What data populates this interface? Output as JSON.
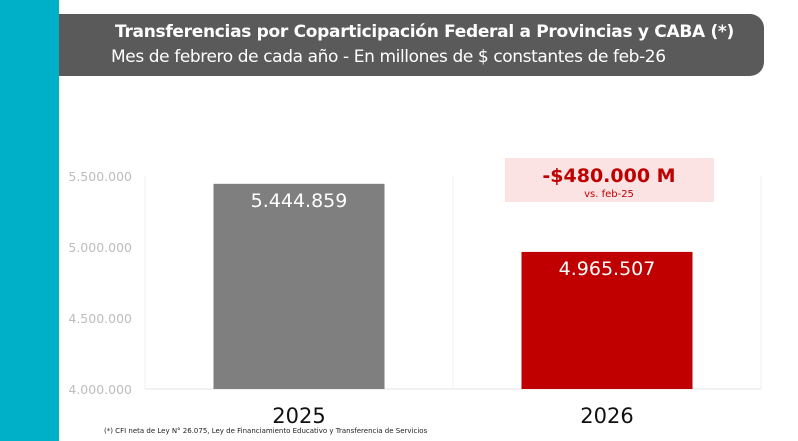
{
  "header": {
    "title": "Transferencias por Coparticipación Federal a Provincias y CABA (*)",
    "subtitle": "Mes de febrero de cada año - En millones de $ constantes de feb-26"
  },
  "colors": {
    "sidebar": "#00b0c8",
    "header": "#5a5a5a",
    "bar_2025": "#7f7f7f",
    "bar_2026": "#c00000",
    "annotation_bg": "#fbe3e3",
    "annotation_text": "#c00000"
  },
  "chart_data": {
    "type": "bar",
    "categories": [
      "2025",
      "2026"
    ],
    "values": [
      5444859,
      4965507
    ],
    "data_labels": [
      "5.444.859",
      "4.965.507"
    ],
    "ylim": [
      4000000,
      5500000
    ],
    "yticks": [
      4000000,
      4500000,
      5000000,
      5500000
    ],
    "ytick_labels": [
      "4.000.000",
      "4.500.000",
      "5.000.000",
      "5.500.000"
    ],
    "grid": false,
    "annotation": {
      "value": "-$480.000 M",
      "note": "vs. feb-25"
    }
  },
  "footnote": "(*) CFI neta de Ley N° 26.075, Ley de Financiamiento Educativo y Transferencia de Servicios"
}
